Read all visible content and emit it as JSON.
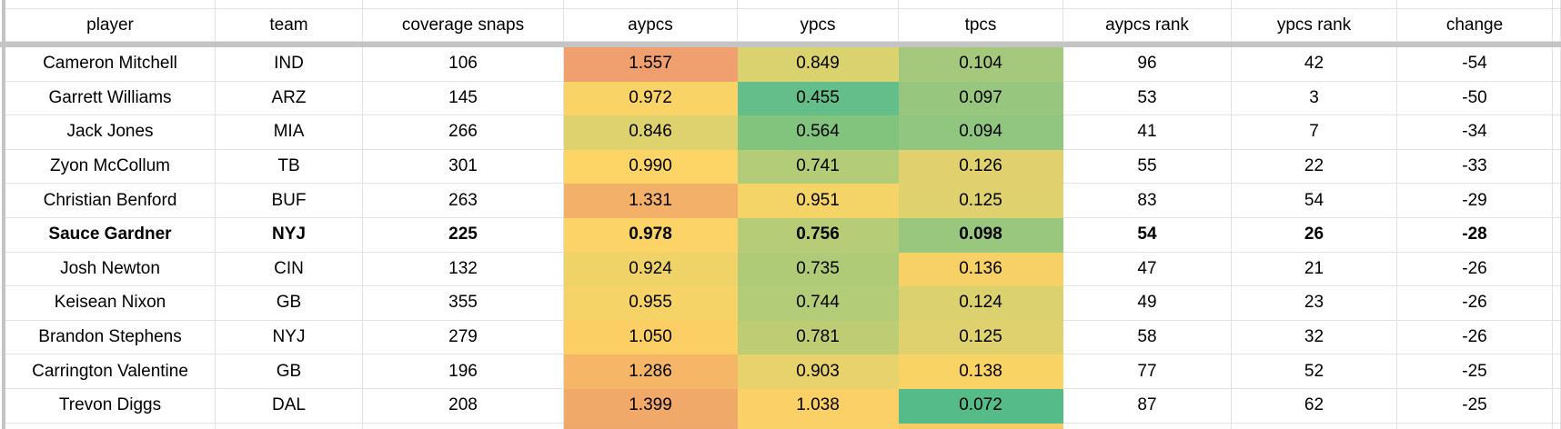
{
  "colors": {
    "background": "#ffffff",
    "grid_line": "#e2e2e2",
    "frozen_divider": "#c4c4c4",
    "text": "#000000",
    "heatmap_green": "#57bb8a",
    "heatmap_yellow": "#ffd666",
    "heatmap_orange": "#f0a06f"
  },
  "table": {
    "columns": [
      {
        "key": "player",
        "label": "player"
      },
      {
        "key": "team",
        "label": "team"
      },
      {
        "key": "coverage_snaps",
        "label": "coverage snaps"
      },
      {
        "key": "aypcs",
        "label": "aypcs"
      },
      {
        "key": "ypcs",
        "label": "ypcs"
      },
      {
        "key": "tpcs",
        "label": "tpcs"
      },
      {
        "key": "aypcs_rank",
        "label": "aypcs rank"
      },
      {
        "key": "ypcs_rank",
        "label": "ypcs rank"
      },
      {
        "key": "change",
        "label": "change"
      }
    ],
    "rows": [
      {
        "player": "Cameron Mitchell",
        "team": "IND",
        "coverage_snaps": "106",
        "aypcs": "1.557",
        "ypcs": "0.849",
        "tpcs": "0.104",
        "aypcs_rank": "96",
        "ypcs_rank": "42",
        "change": "-54",
        "bold": false,
        "colors": {
          "aypcs": "#F0A06F",
          "ypcs": "#D9D26E",
          "tpcs": "#A5C97C"
        }
      },
      {
        "player": "Garrett Williams",
        "team": "ARZ",
        "coverage_snaps": "145",
        "aypcs": "0.972",
        "ypcs": "0.455",
        "tpcs": "0.097",
        "aypcs_rank": "53",
        "ypcs_rank": "3",
        "change": "-50",
        "bold": false,
        "colors": {
          "aypcs": "#FAD367",
          "ypcs": "#63BE89",
          "tpcs": "#97C77F"
        }
      },
      {
        "player": "Jack Jones",
        "team": "MIA",
        "coverage_snaps": "266",
        "aypcs": "0.846",
        "ypcs": "0.564",
        "tpcs": "0.094",
        "aypcs_rank": "41",
        "ypcs_rank": "7",
        "change": "-34",
        "bold": false,
        "colors": {
          "aypcs": "#DED26E",
          "ypcs": "#82C47E",
          "tpcs": "#91C681"
        }
      },
      {
        "player": "Zyon McCollum",
        "team": "TB",
        "coverage_snaps": "301",
        "aypcs": "0.990",
        "ypcs": "0.741",
        "tpcs": "0.126",
        "aypcs_rank": "55",
        "ypcs_rank": "22",
        "change": "-33",
        "bold": false,
        "colors": {
          "aypcs": "#FDD566",
          "ypcs": "#B2CC77",
          "tpcs": "#E0D16E"
        }
      },
      {
        "player": "Christian Benford",
        "team": "BUF",
        "coverage_snaps": "263",
        "aypcs": "1.331",
        "ypcs": "0.951",
        "tpcs": "0.125",
        "aypcs_rank": "83",
        "ypcs_rank": "54",
        "change": "-29",
        "bold": false,
        "colors": {
          "aypcs": "#F3B068",
          "ypcs": "#F4D367",
          "tpcs": "#DED16E"
        }
      },
      {
        "player": "Sauce Gardner",
        "team": "NYJ",
        "coverage_snaps": "225",
        "aypcs": "0.978",
        "ypcs": "0.756",
        "tpcs": "0.098",
        "aypcs_rank": "54",
        "ypcs_rank": "26",
        "change": "-28",
        "bold": true,
        "colors": {
          "aypcs": "#FBD366",
          "ypcs": "#B6CC76",
          "tpcs": "#99C77E"
        }
      },
      {
        "player": "Josh Newton",
        "team": "CIN",
        "coverage_snaps": "132",
        "aypcs": "0.924",
        "ypcs": "0.735",
        "tpcs": "0.136",
        "aypcs_rank": "47",
        "ypcs_rank": "21",
        "change": "-26",
        "bold": false,
        "colors": {
          "aypcs": "#EFD369",
          "ypcs": "#AFCB78",
          "tpcs": "#F7D165"
        }
      },
      {
        "player": "Keisean Nixon",
        "team": "GB",
        "coverage_snaps": "355",
        "aypcs": "0.955",
        "ypcs": "0.744",
        "tpcs": "0.124",
        "aypcs_rank": "49",
        "ypcs_rank": "23",
        "change": "-26",
        "bold": false,
        "colors": {
          "aypcs": "#F5D367",
          "ypcs": "#B3CC77",
          "tpcs": "#DCD16F"
        }
      },
      {
        "player": "Brandon Stephens",
        "team": "NYJ",
        "coverage_snaps": "279",
        "aypcs": "1.050",
        "ypcs": "0.781",
        "tpcs": "0.125",
        "aypcs_rank": "58",
        "ypcs_rank": "32",
        "change": "-26",
        "bold": false,
        "colors": {
          "aypcs": "#FCCF64",
          "ypcs": "#BECD74",
          "tpcs": "#DED16E"
        }
      },
      {
        "player": "Carrington Valentine",
        "team": "GB",
        "coverage_snaps": "196",
        "aypcs": "1.286",
        "ypcs": "0.903",
        "tpcs": "0.138",
        "aypcs_rank": "77",
        "ypcs_rank": "52",
        "change": "-25",
        "bold": false,
        "colors": {
          "aypcs": "#F5B767",
          "ypcs": "#E8D26B",
          "tpcs": "#FAD365"
        }
      },
      {
        "player": "Trevon Diggs",
        "team": "DAL",
        "coverage_snaps": "208",
        "aypcs": "1.399",
        "ypcs": "1.038",
        "tpcs": "0.072",
        "aypcs_rank": "87",
        "ypcs_rank": "62",
        "change": "-25",
        "bold": false,
        "colors": {
          "aypcs": "#F1A96A",
          "ypcs": "#FBD066",
          "tpcs": "#55BC89"
        }
      }
    ],
    "partial_bottom_colors": {
      "aypcs": "#F0A76C",
      "ypcs": "#FAD166",
      "tpcs": "#F6CB64"
    }
  }
}
